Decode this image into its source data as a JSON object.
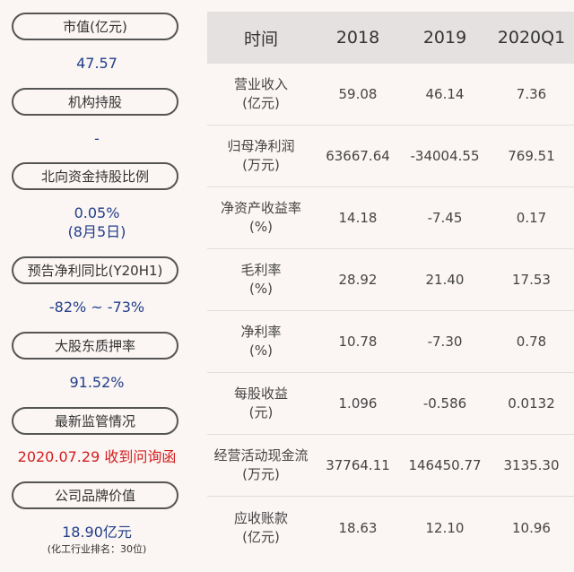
{
  "left_panel": [
    {
      "label": "市值(亿元)",
      "value": "47.57"
    },
    {
      "label": "机构持股",
      "value": "-"
    },
    {
      "label": "北向资金持股比例",
      "value": "0.05%",
      "value2": "(8月5日)"
    },
    {
      "label": "预告净利同比(Y20H1)",
      "value": "-82% ~ -73%"
    },
    {
      "label": "大股东质押率",
      "value": "91.52%"
    },
    {
      "label": "最新监管情况",
      "value": "2020.07.29 收到问询函"
    },
    {
      "label": "公司品牌价值",
      "value": "18.90亿元",
      "note": "(化工行业排名：30位)"
    }
  ],
  "table": {
    "headers": [
      "时间",
      "2018",
      "2019",
      "2020Q1"
    ],
    "rows": [
      {
        "name1": "营业收入",
        "name2": "(亿元)",
        "v": [
          "59.08",
          "46.14",
          "7.36"
        ]
      },
      {
        "name1": "归母净利润",
        "name2": "(万元)",
        "v": [
          "63667.64",
          "-34004.55",
          "769.51"
        ]
      },
      {
        "name1": "净资产收益率",
        "name2": "(%)",
        "v": [
          "14.18",
          "-7.45",
          "0.17"
        ]
      },
      {
        "name1": "毛利率",
        "name2": "(%)",
        "v": [
          "28.92",
          "21.40",
          "17.53"
        ]
      },
      {
        "name1": "净利率",
        "name2": "(%)",
        "v": [
          "10.78",
          "-7.30",
          "0.78"
        ]
      },
      {
        "name1": "每股收益",
        "name2": "(元)",
        "v": [
          "1.096",
          "-0.586",
          "0.0132"
        ]
      },
      {
        "name1": "经营活动现金流",
        "name2": "(万元)",
        "v": [
          "37764.11",
          "146450.77",
          "3135.30"
        ]
      },
      {
        "name1": "应收账款",
        "name2": "(亿元)",
        "v": [
          "18.63",
          "12.10",
          "10.96"
        ]
      }
    ]
  }
}
